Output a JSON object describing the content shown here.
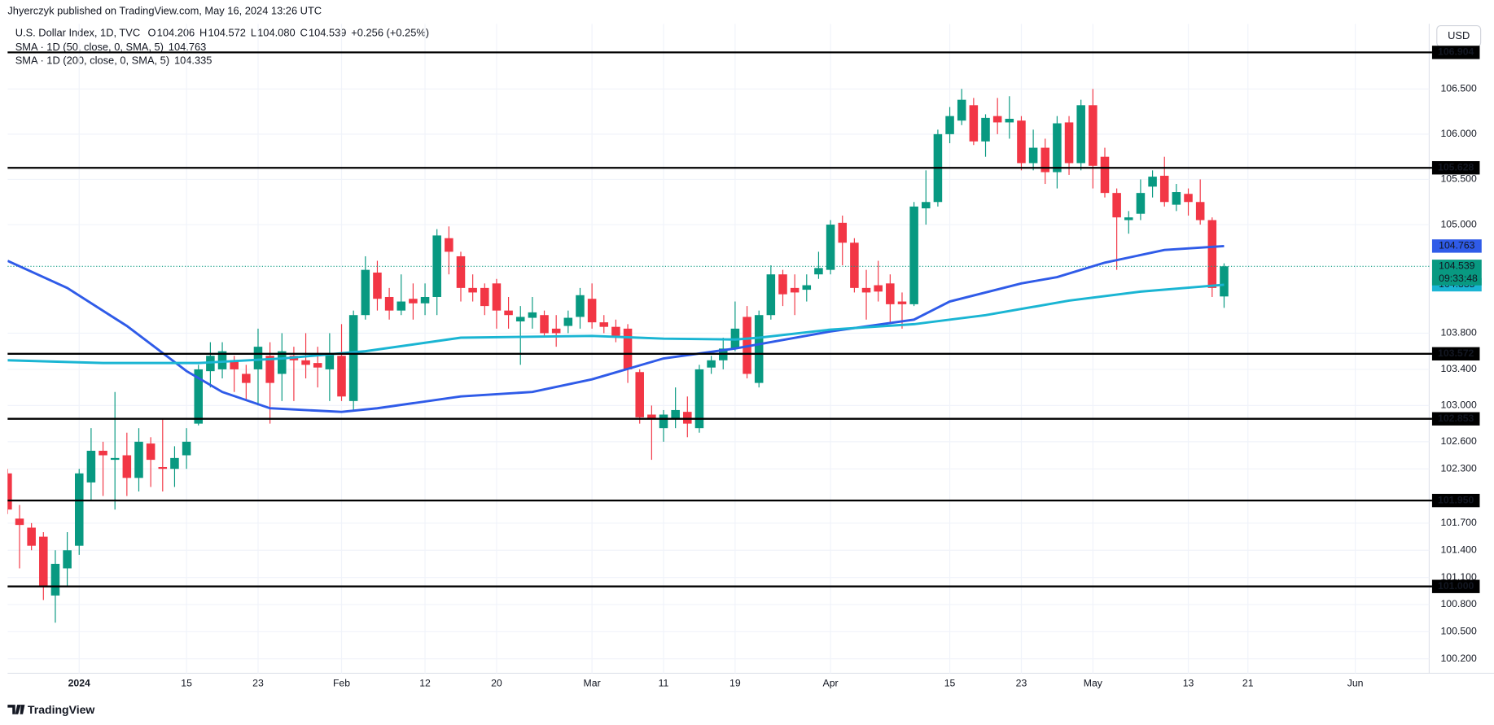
{
  "header": {
    "publisher": "Jhyerczyk published on TradingView.com, May 16, 2024 13:26 UTC",
    "symbol": "U.S. Dollar Index, 1D, TVC",
    "ohlc": [
      {
        "key": "O",
        "value": "104.206"
      },
      {
        "key": "H",
        "value": "104.572"
      },
      {
        "key": "L",
        "value": "104.080"
      },
      {
        "key": "C",
        "value": "104.539"
      }
    ],
    "change": "+0.256 (+0.25%)",
    "currency": "USD",
    "brand": "TradingView"
  },
  "chart_data": {
    "type": "candlestick",
    "xlim": [
      0,
      119.2
    ],
    "xticks": [
      {
        "value": 6,
        "label": "2024"
      },
      {
        "value": 15,
        "label": "15"
      },
      {
        "value": 21,
        "label": "23"
      },
      {
        "value": 28,
        "label": "Feb"
      },
      {
        "value": 35,
        "label": "12"
      },
      {
        "value": 41,
        "label": "20"
      },
      {
        "value": 49,
        "label": "Mar"
      },
      {
        "value": 55,
        "label": "11"
      },
      {
        "value": 61,
        "label": "19"
      },
      {
        "value": 69,
        "label": "Apr"
      },
      {
        "value": 79,
        "label": "15"
      },
      {
        "value": 85,
        "label": "23"
      },
      {
        "value": 91,
        "label": "May"
      },
      {
        "value": 99,
        "label": "13"
      },
      {
        "value": 104,
        "label": "21"
      },
      {
        "value": 113,
        "label": "Jun"
      }
    ],
    "ylim": [
      100.04,
      107.22
    ],
    "yticks": [
      {
        "value": 100.2,
        "label": "100.200"
      },
      {
        "value": 100.5,
        "label": "100.500"
      },
      {
        "value": 100.8,
        "label": "100.800"
      },
      {
        "value": 101.1,
        "label": "101.100"
      },
      {
        "value": 101.4,
        "label": "101.400"
      },
      {
        "value": 101.7,
        "label": "101.700"
      },
      {
        "value": 102.3,
        "label": "102.300"
      },
      {
        "value": 102.6,
        "label": "102.600"
      },
      {
        "value": 103,
        "label": "103.000"
      },
      {
        "value": 103.4,
        "label": "103.400"
      },
      {
        "value": 103.8,
        "label": "103.800"
      },
      {
        "value": 105,
        "label": "105.000"
      },
      {
        "value": 105.5,
        "label": "105.500"
      },
      {
        "value": 106,
        "label": "106.000"
      },
      {
        "value": 106.5,
        "label": "106.500"
      }
    ],
    "grid": true,
    "up_color": "#089981",
    "down_color": "#f23645",
    "open": [
      102.25,
      101.75,
      101.65,
      101.55,
      100.9,
      101.2,
      101.45,
      102.15,
      102.5,
      102.4,
      102.45,
      102.2,
      102.58,
      102.32,
      102.3,
      102.45,
      102.8,
      103.38,
      103.4,
      103.5,
      103.35,
      103.4,
      103.55,
      103.35,
      103.55,
      103.5,
      103.47,
      103.4,
      103.55,
      103.05,
      104.0,
      104.47,
      104.2,
      104.05,
      104.18,
      104.13,
      104.2,
      104.85,
      104.65,
      104.3,
      104.3,
      104.35,
      104.05,
      103.93,
      103.97,
      104.0,
      103.85,
      103.88,
      103.98,
      104.18,
      103.92,
      103.87,
      103.85,
      103.37,
      102.9,
      102.75,
      102.85,
      102.93,
      102.75,
      103.42,
      103.5,
      103.63,
      103.98,
      103.25,
      104.0,
      104.45,
      104.3,
      104.28,
      104.45,
      104.5,
      105.02,
      104.8,
      104.3,
      104.33,
      104.35,
      104.15,
      104.12,
      105.18,
      105.25,
      106.0,
      106.15,
      106.32,
      105.92,
      106.2,
      106.13,
      106.15,
      105.68,
      105.85,
      105.58,
      106.13,
      105.68,
      106.32,
      105.75,
      105.35,
      105.05,
      105.12,
      105.42,
      105.54,
      105.22,
      105.34,
      105.25,
      105.05,
      104.206
    ],
    "high": [
      102.3,
      101.9,
      101.7,
      101.6,
      101.4,
      101.6,
      102.3,
      102.75,
      102.6,
      103.15,
      102.7,
      102.75,
      102.65,
      102.85,
      102.55,
      102.75,
      103.45,
      103.7,
      103.7,
      103.55,
      103.45,
      103.85,
      103.7,
      103.8,
      103.65,
      103.8,
      103.65,
      103.8,
      103.9,
      104.05,
      104.65,
      104.6,
      104.3,
      104.45,
      104.35,
      104.35,
      104.95,
      104.98,
      104.7,
      104.45,
      104.35,
      104.4,
      104.2,
      104.1,
      104.2,
      104.05,
      104.0,
      104.05,
      104.3,
      104.35,
      104.0,
      103.95,
      103.9,
      103.4,
      103.0,
      102.95,
      103.2,
      103.1,
      103.45,
      103.55,
      103.75,
      104.15,
      104.1,
      104.05,
      104.55,
      104.5,
      104.45,
      104.45,
      104.7,
      105.05,
      105.1,
      104.85,
      104.5,
      104.6,
      104.45,
      104.25,
      105.25,
      105.6,
      106.05,
      106.3,
      106.5,
      106.4,
      106.22,
      106.4,
      106.42,
      106.2,
      106.05,
      105.95,
      106.2,
      106.2,
      106.38,
      106.5,
      105.85,
      105.4,
      105.15,
      105.5,
      105.6,
      105.75,
      105.45,
      105.4,
      105.5,
      105.08,
      104.572
    ],
    "low": [
      101.8,
      101.2,
      101.4,
      100.85,
      100.6,
      101.0,
      101.35,
      101.95,
      102.0,
      101.85,
      102.0,
      102.05,
      102.1,
      102.05,
      102.1,
      102.3,
      102.78,
      103.2,
      103.3,
      103.15,
      103.05,
      103.0,
      102.8,
      103.05,
      103.05,
      103.3,
      103.2,
      103.05,
      103.05,
      102.95,
      103.95,
      104.05,
      103.95,
      104.0,
      103.95,
      104.0,
      104.0,
      104.45,
      104.15,
      104.15,
      104.0,
      103.85,
      103.85,
      103.45,
      103.85,
      103.75,
      103.65,
      103.8,
      103.85,
      103.85,
      103.8,
      103.7,
      103.25,
      102.8,
      102.4,
      102.6,
      102.75,
      102.65,
      102.7,
      103.35,
      103.4,
      103.6,
      103.3,
      103.2,
      103.95,
      104.1,
      104.0,
      104.15,
      104.4,
      104.45,
      104.55,
      104.25,
      103.95,
      104.15,
      103.9,
      103.85,
      104.1,
      105.0,
      105.2,
      105.9,
      106.1,
      105.88,
      105.75,
      106.0,
      105.95,
      105.6,
      105.6,
      105.45,
      105.4,
      105.55,
      105.6,
      105.4,
      105.3,
      104.5,
      104.9,
      105.05,
      105.3,
      105.2,
      105.15,
      105.1,
      105.0,
      104.2,
      104.08
    ],
    "close": [
      101.85,
      101.68,
      101.45,
      101.0,
      101.25,
      101.4,
      102.25,
      102.5,
      102.45,
      102.42,
      102.2,
      102.6,
      102.4,
      102.3,
      102.42,
      102.6,
      103.4,
      103.55,
      103.6,
      103.4,
      103.25,
      103.65,
      103.25,
      103.6,
      103.5,
      103.45,
      103.42,
      103.58,
      103.1,
      104.0,
      104.5,
      104.18,
      104.05,
      104.15,
      104.13,
      104.2,
      104.88,
      104.7,
      104.3,
      104.25,
      104.1,
      104.05,
      104.0,
      103.98,
      104.03,
      103.8,
      103.8,
      103.97,
      104.22,
      103.92,
      103.87,
      103.77,
      103.4,
      102.87,
      102.85,
      102.9,
      102.95,
      102.8,
      103.4,
      103.5,
      103.63,
      103.85,
      103.35,
      104.0,
      104.45,
      104.23,
      104.25,
      104.33,
      104.52,
      105.0,
      104.8,
      104.3,
      104.25,
      104.26,
      104.12,
      104.12,
      105.2,
      105.25,
      106.0,
      106.2,
      106.38,
      105.92,
      106.18,
      106.13,
      106.17,
      105.68,
      105.85,
      105.58,
      106.12,
      105.68,
      106.32,
      105.65,
      105.35,
      105.08,
      105.08,
      105.35,
      105.53,
      105.25,
      105.36,
      105.25,
      105.05,
      104.3,
      104.539
    ],
    "series": [
      {
        "name": "SMA · 1D (50, close, 0, SMA, 5)",
        "color": "#2f5be8",
        "last": 104.763,
        "x": [
          0,
          5,
          10,
          15,
          18,
          22,
          28,
          31,
          38,
          44,
          49,
          55,
          61,
          69,
          76,
          79,
          85,
          88,
          92,
          97,
          102
        ],
        "values": [
          104.6,
          104.3,
          103.88,
          103.38,
          103.15,
          102.97,
          102.93,
          102.97,
          103.1,
          103.15,
          103.29,
          103.52,
          103.63,
          103.82,
          103.95,
          104.15,
          104.35,
          104.42,
          104.58,
          104.72,
          104.763
        ]
      },
      {
        "name": "SMA · 1D (200, close, 0, SMA, 5)",
        "color": "#1ab5d3",
        "last": 104.335,
        "x": [
          0,
          8,
          16,
          23,
          30,
          38,
          49,
          55,
          61,
          63,
          69,
          76,
          82,
          89,
          95,
          102
        ],
        "values": [
          103.5,
          103.47,
          103.47,
          103.52,
          103.6,
          103.75,
          103.77,
          103.74,
          103.73,
          103.75,
          103.84,
          103.9,
          104.0,
          104.16,
          104.26,
          104.335
        ]
      }
    ],
    "last_price": {
      "value": 104.539,
      "countdown": "09:33:48"
    },
    "levels": [
      {
        "value": 106.904,
        "label": "106.904"
      },
      {
        "value": 105.628,
        "label": "105.628"
      },
      {
        "value": 103.572,
        "label": "103.572"
      },
      {
        "value": 102.853,
        "label": "102.853"
      },
      {
        "value": 101.95,
        "label": "101.950"
      },
      {
        "value": 101.0,
        "label": "101.000"
      }
    ]
  }
}
